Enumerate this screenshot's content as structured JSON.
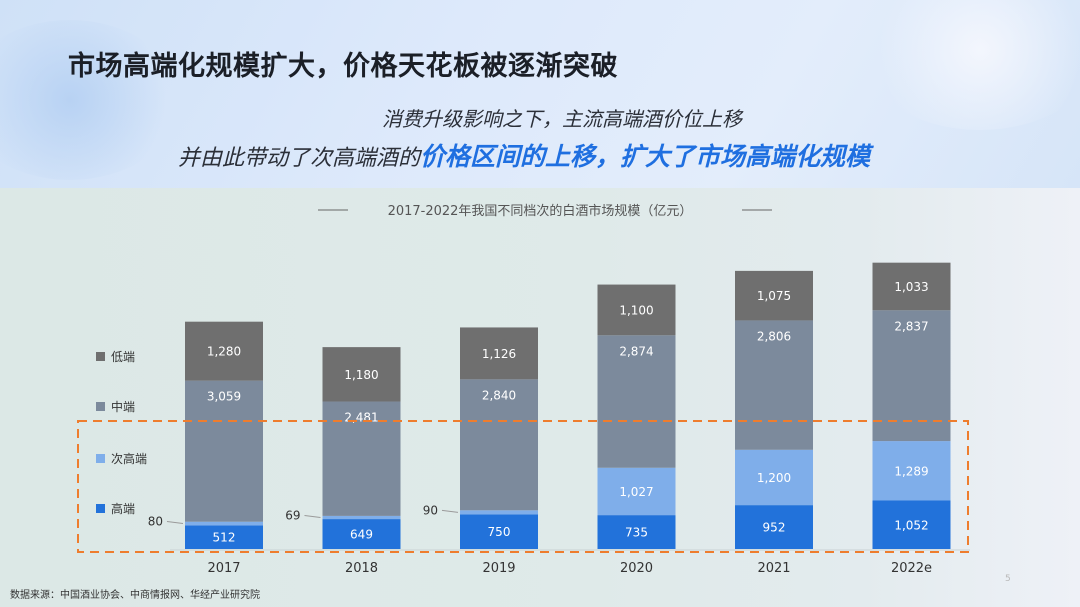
{
  "header": {
    "title": "市场高端化规模扩大，价格天花板被逐渐突破",
    "subtitle_line1": "消费升级影响之下，主流高端酒价位上移",
    "subtitle_line2_prefix": "并由此带动了次高端酒的",
    "subtitle_line2_highlight": "价格区间的上移，扩大了市场高端化规模"
  },
  "source": "数据来源：中国酒业协会、中商情报网、华经产业研究院",
  "page_number": "5",
  "colors": {
    "low": "#6f6f6f",
    "mid": "#7c8a9c",
    "sub_high": "#7faeea",
    "high": "#2272da",
    "highlight_box": "#ee7d2e"
  },
  "chart_data": {
    "type": "bar",
    "stacked": true,
    "title": "2017-2022年我国不同档次的白酒市场规模（亿元）",
    "categories": [
      "2017",
      "2018",
      "2019",
      "2020",
      "2021",
      "2022e"
    ],
    "series": [
      {
        "name": "高端",
        "values": [
          512,
          649,
          750,
          735,
          952,
          1052
        ],
        "labels": [
          "512",
          "649",
          "750",
          "735",
          "952",
          "1,052"
        ]
      },
      {
        "name": "次高端",
        "values": [
          80,
          69,
          90,
          1027,
          1200,
          1289
        ],
        "labels": [
          "80",
          "69",
          "90",
          "1,027",
          "1,200",
          "1,289"
        ]
      },
      {
        "name": "中端",
        "values": [
          3059,
          2481,
          2840,
          2874,
          2806,
          2837
        ],
        "labels": [
          "3,059",
          "2,481",
          "2,840",
          "2,874",
          "2,806",
          "2,837"
        ]
      },
      {
        "name": "低端",
        "values": [
          1280,
          1180,
          1126,
          1100,
          1075,
          1033
        ],
        "labels": [
          "1,280",
          "1,180",
          "1,126",
          "1,100",
          "1,075",
          "1,033"
        ]
      }
    ],
    "legend_order": [
      "低端",
      "中端",
      "次高端",
      "高端"
    ],
    "legend_position": "left",
    "highlighted_series": [
      "高端",
      "次高端"
    ],
    "grid": false
  }
}
